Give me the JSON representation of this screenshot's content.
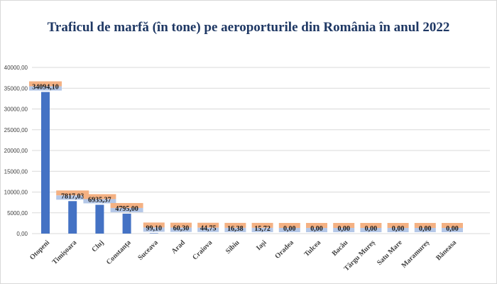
{
  "colors": {
    "bar": "#4472c4",
    "label_bg": "#f4b183",
    "label_bg_alt": "#b4c7e7",
    "grid": "#d9d9d9",
    "title": "#1f3864"
  },
  "chart_data": {
    "type": "bar",
    "title": "Traficul de marfă (în tone) pe aeroporturile din România în anul 2022",
    "xlabel": "",
    "ylabel": "",
    "ylim": [
      0,
      40000
    ],
    "yticks": [
      "0,00",
      "5000,00",
      "10000,00",
      "15000,00",
      "20000,00",
      "25000,00",
      "30000,00",
      "35000,00",
      "40000,00"
    ],
    "grid": true,
    "legend": "none",
    "categories": [
      "Otopeni",
      "Timișoara",
      "Cluj",
      "Constanța",
      "Suceava",
      "Arad",
      "Craiova",
      "Sibiu",
      "Iași",
      "Oradea",
      "Tulcea",
      "Bacău",
      "Târgu Mureș",
      "Satu Mare",
      "Maramureș",
      "Băneasa"
    ],
    "values": [
      34094.1,
      7817.03,
      6935.37,
      4795.0,
      99.1,
      60.3,
      44.75,
      16.38,
      15.72,
      0.0,
      0.0,
      0.0,
      0.0,
      0.0,
      0.0,
      0.0
    ],
    "data_labels": [
      "34094,10",
      "7817,03",
      "6935,37",
      "4795,00",
      "99,10",
      "60,30",
      "44,75",
      "16,38",
      "15,72",
      "0,00",
      "0,00",
      "0,00",
      "0,00",
      "0,00",
      "0,00",
      "0,00"
    ]
  }
}
